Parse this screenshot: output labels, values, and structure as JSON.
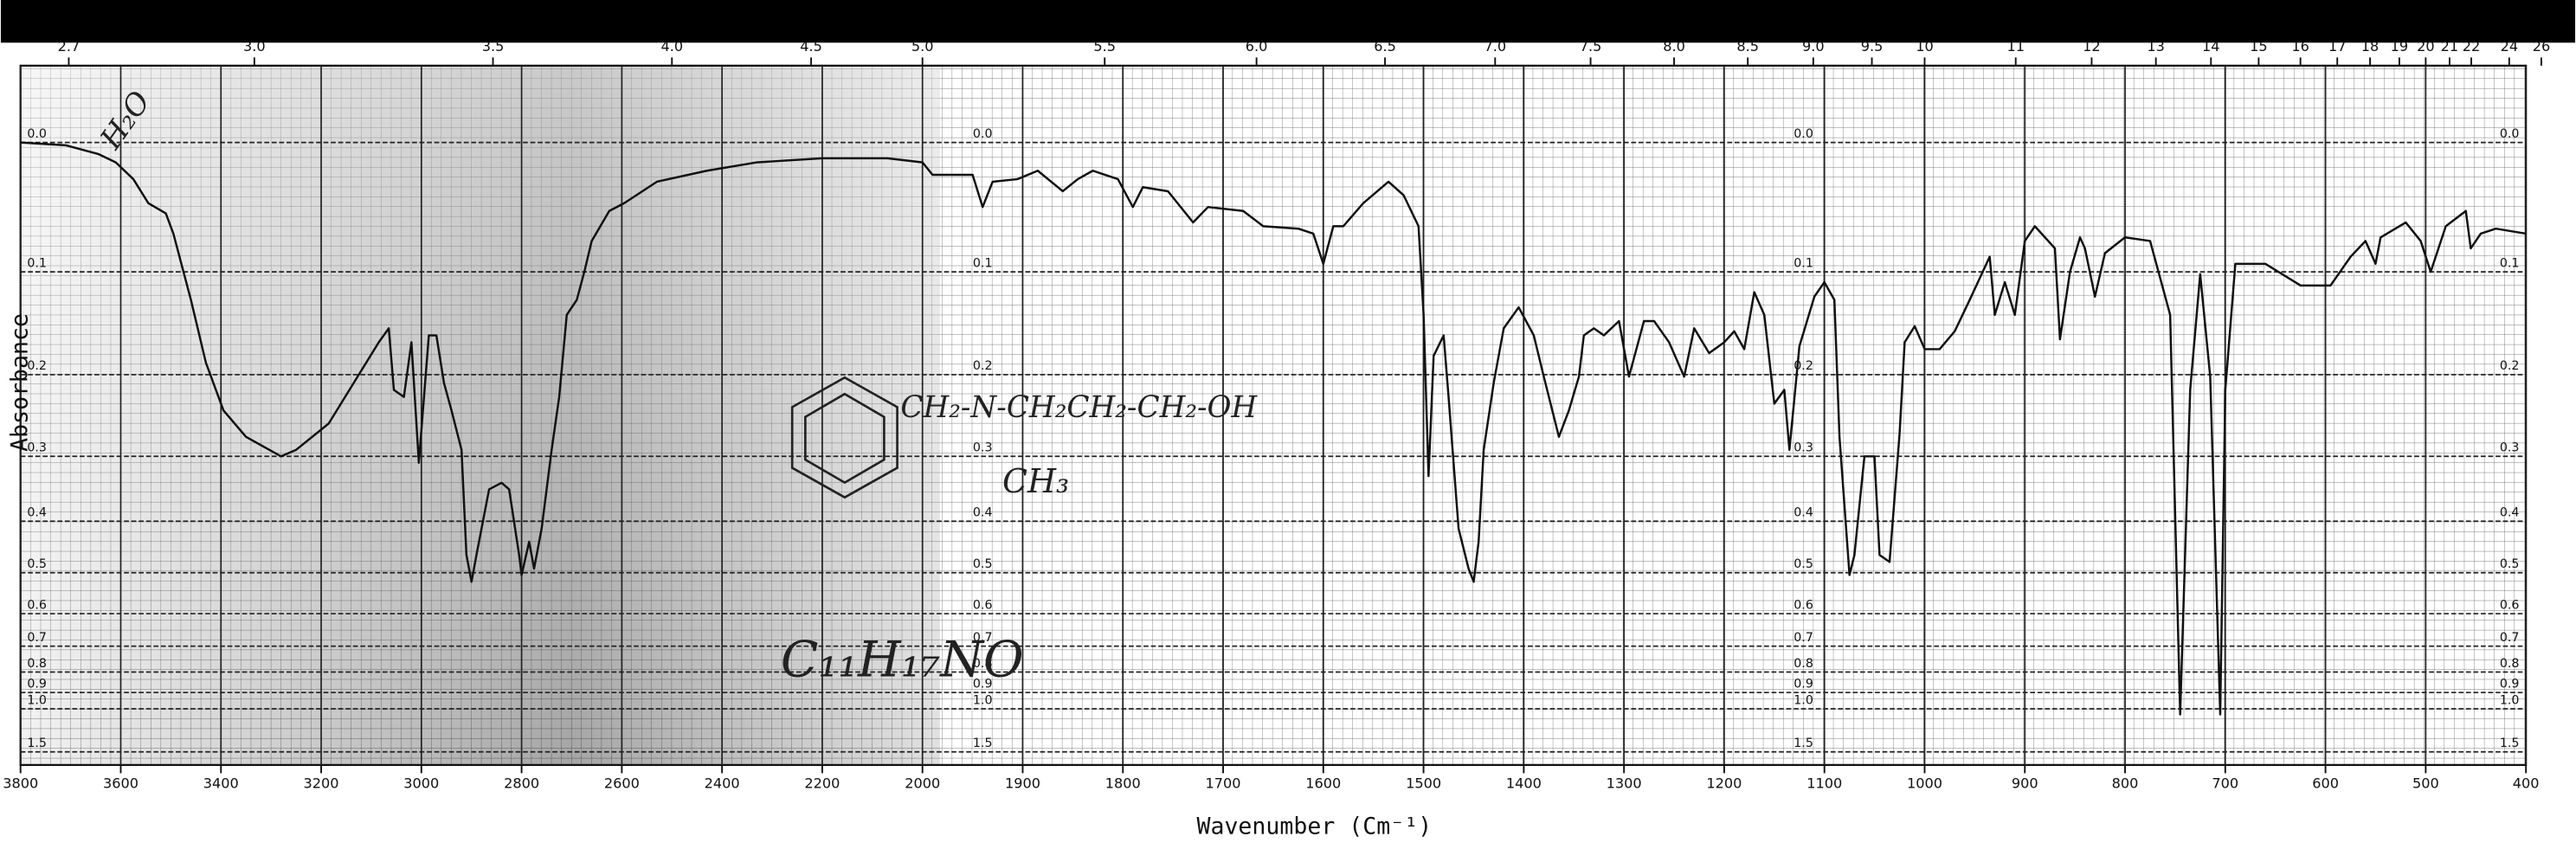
{
  "chart_data": {
    "type": "line",
    "x_label": "Wavenumber (Cm⁻¹)",
    "y_label": "Absorbance",
    "color": "#111111",
    "grid": true,
    "xlim": [
      3800,
      400
    ],
    "xticks": [
      3800,
      3600,
      3400,
      3200,
      3000,
      2800,
      2600,
      2400,
      2200,
      2000,
      1900,
      1800,
      1700,
      1600,
      1500,
      1400,
      1300,
      1200,
      1100,
      1000,
      900,
      800,
      700,
      600,
      500,
      400
    ],
    "x2ticks": [
      2.7,
      {
        "value": 3,
        "label": "3.0"
      },
      3.5,
      {
        "value": 4,
        "label": "4.0"
      },
      4.5,
      {
        "value": 5,
        "label": "5.0"
      },
      5.5,
      {
        "value": 6,
        "label": "6.0"
      },
      6.5,
      {
        "value": 7,
        "label": "7.0"
      },
      7.5,
      {
        "value": 8,
        "label": "8.0"
      },
      8.5,
      {
        "value": 9,
        "label": "9.0"
      },
      9.5,
      10,
      11,
      12,
      13,
      14,
      15,
      16,
      17,
      18,
      19,
      20,
      21,
      22,
      24,
      26
    ],
    "ylim": [
      -0.05,
      1.5
    ],
    "yticks": [
      {
        "value": 0,
        "label": "0.0"
      },
      0.1,
      0.2,
      0.3,
      0.4,
      0.5,
      0.6,
      0.7,
      0.8,
      0.9,
      {
        "value": 1,
        "label": "1.0"
      },
      1.5
    ],
    "annotations": [
      "H₂O",
      "CH₂-N-CH₂CH₂-CH₂-OH",
      "CH₃",
      "C₁₁H₁₇NO"
    ],
    "x": [
      3800,
      3710,
      3645,
      3610,
      3575,
      3545,
      3510,
      3495,
      3460,
      3430,
      3395,
      3350,
      3280,
      3250,
      3185,
      3085,
      3065,
      3055,
      3035,
      3020,
      3005,
      2985,
      2970,
      2955,
      2940,
      2920,
      2910,
      2900,
      2890,
      2865,
      2840,
      2825,
      2805,
      2800,
      2785,
      2775,
      2760,
      2740,
      2725,
      2710,
      2690,
      2675,
      2660,
      2625,
      2595,
      2530,
      2430,
      2330,
      2200,
      2070,
      2000,
      1990,
      1950,
      1940,
      1930,
      1905,
      1885,
      1860,
      1845,
      1830,
      1805,
      1790,
      1780,
      1755,
      1730,
      1715,
      1680,
      1660,
      1625,
      1610,
      1600,
      1590,
      1580,
      1560,
      1535,
      1520,
      1505,
      1500,
      1495,
      1490,
      1480,
      1475,
      1465,
      1455,
      1450,
      1445,
      1440,
      1430,
      1420,
      1405,
      1390,
      1380,
      1365,
      1355,
      1345,
      1340,
      1330,
      1320,
      1305,
      1295,
      1280,
      1270,
      1255,
      1240,
      1230,
      1215,
      1200,
      1190,
      1180,
      1170,
      1160,
      1150,
      1140,
      1135,
      1125,
      1110,
      1100,
      1090,
      1085,
      1075,
      1070,
      1060,
      1050,
      1045,
      1035,
      1025,
      1020,
      1010,
      1000,
      985,
      970,
      955,
      935,
      930,
      920,
      910,
      900,
      890,
      870,
      865,
      855,
      845,
      840,
      830,
      820,
      800,
      775,
      755,
      745,
      735,
      725,
      715,
      705,
      700,
      690,
      660,
      625,
      595,
      575,
      560,
      550,
      545,
      520,
      505,
      495,
      480,
      460,
      455,
      445,
      430,
      400
    ],
    "values": [
      0,
      0.002,
      0.008,
      0.014,
      0.026,
      0.044,
      0.052,
      0.068,
      0.125,
      0.187,
      0.241,
      0.274,
      0.3,
      0.291,
      0.257,
      0.166,
      0.152,
      0.217,
      0.225,
      0.166,
      0.309,
      0.159,
      0.159,
      0.209,
      0.241,
      0.291,
      0.463,
      0.52,
      0.463,
      0.348,
      0.338,
      0.348,
      0.463,
      0.505,
      0.437,
      0.491,
      0.413,
      0.291,
      0.225,
      0.139,
      0.125,
      0.1,
      0.074,
      0.05,
      0.044,
      0.028,
      0.02,
      0.014,
      0.011,
      0.011,
      0.014,
      0.023,
      0.023,
      0.047,
      0.028,
      0.026,
      0.02,
      0.035,
      0.026,
      0.02,
      0.026,
      0.047,
      0.032,
      0.035,
      0.059,
      0.047,
      0.05,
      0.062,
      0.064,
      0.068,
      0.093,
      0.062,
      0.062,
      0.044,
      0.028,
      0.038,
      0.062,
      0.139,
      0.328,
      0.18,
      0.159,
      0.225,
      0.413,
      0.491,
      0.52,
      0.437,
      0.291,
      0.209,
      0.152,
      0.132,
      0.159,
      0.202,
      0.274,
      0.241,
      0.202,
      0.159,
      0.152,
      0.159,
      0.145,
      0.202,
      0.145,
      0.145,
      0.166,
      0.202,
      0.152,
      0.177,
      0.166,
      0.155,
      0.173,
      0.118,
      0.139,
      0.233,
      0.217,
      0.291,
      0.17,
      0.122,
      0.109,
      0.125,
      0.274,
      0.505,
      0.463,
      0.3,
      0.3,
      0.463,
      0.477,
      0.27,
      0.166,
      0.15,
      0.173,
      0.173,
      0.155,
      0.125,
      0.087,
      0.139,
      0.109,
      0.139,
      0.074,
      0.062,
      0.08,
      0.163,
      0.1,
      0.071,
      0.08,
      0.122,
      0.084,
      0.071,
      0.074,
      0.139,
      1.04,
      0.217,
      0.102,
      0.202,
      1.04,
      0.217,
      0.093,
      0.093,
      0.112,
      0.112,
      0.087,
      0.074,
      0.093,
      0.071,
      0.059,
      0.074,
      0.1,
      0.062,
      0.05,
      0.08,
      0.068,
      0.064,
      0.068
    ]
  }
}
